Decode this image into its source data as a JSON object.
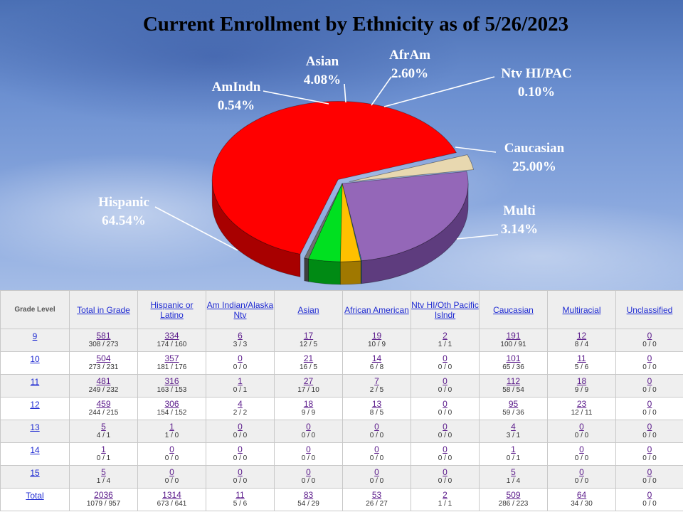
{
  "chart_data": {
    "type": "pie",
    "title": "Current Enrollment by Ethnicity as of 5/26/2023",
    "slices": [
      {
        "name": "Hispanic",
        "value": 64.54,
        "label": "64.54%",
        "color": "#ff0000",
        "side": "#a80000"
      },
      {
        "name": "Multi",
        "value": 3.14,
        "label": "3.14%",
        "color": "#e8d8b0",
        "side": "#9a8a60"
      },
      {
        "name": "Caucasian",
        "value": 25.0,
        "label": "25.00%",
        "color": "#9467b8",
        "side": "#5e3c7e"
      },
      {
        "name": "Ntv HI/PAC",
        "value": 0.1,
        "label": "0.10%",
        "color": "#1fb4c8",
        "side": "#0f6a78"
      },
      {
        "name": "AfrAm",
        "value": 2.6,
        "label": "2.60%",
        "color": "#ffc000",
        "side": "#a07800"
      },
      {
        "name": "Asian",
        "value": 4.08,
        "label": "4.08%",
        "color": "#00e020",
        "side": "#008a14"
      },
      {
        "name": "AmIndn",
        "value": 0.54,
        "label": "0.54%",
        "color": "#707070",
        "side": "#3e3e3e"
      }
    ]
  },
  "table": {
    "headers": [
      "Grade Level",
      "Total in Grade",
      "Hispanic or Latino",
      "Am Indian/Alaska Ntv",
      "Asian",
      "African American",
      "Ntv HI/Oth Pacific Islndr",
      "Caucasian",
      "Multiracial",
      "Unclassified"
    ],
    "rows": [
      {
        "grade": "9",
        "cells": [
          [
            "581",
            "308 / 273"
          ],
          [
            "334",
            "174 / 160"
          ],
          [
            "6",
            "3 / 3"
          ],
          [
            "17",
            "12 / 5"
          ],
          [
            "19",
            "10 / 9"
          ],
          [
            "2",
            "1 / 1"
          ],
          [
            "191",
            "100 / 91"
          ],
          [
            "12",
            "8 / 4"
          ],
          [
            "0",
            "0 / 0"
          ]
        ]
      },
      {
        "grade": "10",
        "cells": [
          [
            "504",
            "273 / 231"
          ],
          [
            "357",
            "181 / 176"
          ],
          [
            "0",
            "0 / 0"
          ],
          [
            "21",
            "16 / 5"
          ],
          [
            "14",
            "6 / 8"
          ],
          [
            "0",
            "0 / 0"
          ],
          [
            "101",
            "65 / 36"
          ],
          [
            "11",
            "5 / 6"
          ],
          [
            "0",
            "0 / 0"
          ]
        ]
      },
      {
        "grade": "11",
        "cells": [
          [
            "481",
            "249 / 232"
          ],
          [
            "316",
            "163 / 153"
          ],
          [
            "1",
            "0 / 1"
          ],
          [
            "27",
            "17 / 10"
          ],
          [
            "7",
            "2 / 5"
          ],
          [
            "0",
            "0 / 0"
          ],
          [
            "112",
            "58 / 54"
          ],
          [
            "18",
            "9 / 9"
          ],
          [
            "0",
            "0 / 0"
          ]
        ]
      },
      {
        "grade": "12",
        "cells": [
          [
            "459",
            "244 / 215"
          ],
          [
            "306",
            "154 / 152"
          ],
          [
            "4",
            "2 / 2"
          ],
          [
            "18",
            "9 / 9"
          ],
          [
            "13",
            "8 / 5"
          ],
          [
            "0",
            "0 / 0"
          ],
          [
            "95",
            "59 / 36"
          ],
          [
            "23",
            "12 / 11"
          ],
          [
            "0",
            "0 / 0"
          ]
        ]
      },
      {
        "grade": "13",
        "cells": [
          [
            "5",
            "4 / 1"
          ],
          [
            "1",
            "1 / 0"
          ],
          [
            "0",
            "0 / 0"
          ],
          [
            "0",
            "0 / 0"
          ],
          [
            "0",
            "0 / 0"
          ],
          [
            "0",
            "0 / 0"
          ],
          [
            "4",
            "3 / 1"
          ],
          [
            "0",
            "0 / 0"
          ],
          [
            "0",
            "0 / 0"
          ]
        ]
      },
      {
        "grade": "14",
        "cells": [
          [
            "1",
            "0 / 1"
          ],
          [
            "0",
            "0 / 0"
          ],
          [
            "0",
            "0 / 0"
          ],
          [
            "0",
            "0 / 0"
          ],
          [
            "0",
            "0 / 0"
          ],
          [
            "0",
            "0 / 0"
          ],
          [
            "1",
            "0 / 1"
          ],
          [
            "0",
            "0 / 0"
          ],
          [
            "0",
            "0 / 0"
          ]
        ]
      },
      {
        "grade": "15",
        "cells": [
          [
            "5",
            "1 / 4"
          ],
          [
            "0",
            "0 / 0"
          ],
          [
            "0",
            "0 / 0"
          ],
          [
            "0",
            "0 / 0"
          ],
          [
            "0",
            "0 / 0"
          ],
          [
            "0",
            "0 / 0"
          ],
          [
            "5",
            "1 / 4"
          ],
          [
            "0",
            "0 / 0"
          ],
          [
            "0",
            "0 / 0"
          ]
        ]
      },
      {
        "grade": "Total",
        "cells": [
          [
            "2036",
            "1079 / 957"
          ],
          [
            "1314",
            "673 / 641"
          ],
          [
            "11",
            "5 / 6"
          ],
          [
            "83",
            "54 / 29"
          ],
          [
            "53",
            "26 / 27"
          ],
          [
            "2",
            "1 / 1"
          ],
          [
            "509",
            "286 / 223"
          ],
          [
            "64",
            "34 / 30"
          ],
          [
            "0",
            "0 / 0"
          ]
        ]
      }
    ]
  }
}
